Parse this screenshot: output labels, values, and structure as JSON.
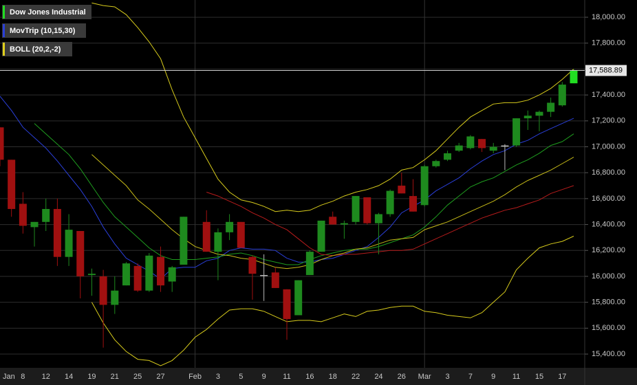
{
  "chart_data": {
    "type": "candlestick",
    "ylim": [
      15294,
      18133
    ],
    "yticks": [
      {
        "value": 15400,
        "label": "15,400.00"
      },
      {
        "value": 15600,
        "label": "15,600.00"
      },
      {
        "value": 15800,
        "label": "15,800.00"
      },
      {
        "value": 16000,
        "label": "16,000.00"
      },
      {
        "value": 16200,
        "label": "16,200.00"
      },
      {
        "value": 16400,
        "label": "16,400.00"
      },
      {
        "value": 16600,
        "label": "16,600.00"
      },
      {
        "value": 16800,
        "label": "16,800.00"
      },
      {
        "value": 17000,
        "label": "17,000.00"
      },
      {
        "value": 17200,
        "label": "17,200.00"
      },
      {
        "value": 17400,
        "label": "17,400.00"
      },
      {
        "value": 17600,
        "label": "17,600.00"
      },
      {
        "value": 17800,
        "label": "17,800.00"
      },
      {
        "value": 18000,
        "label": "18,000.00"
      }
    ],
    "grid": true,
    "categories": [
      "Jan",
      null,
      "8",
      null,
      "12",
      null,
      "14",
      null,
      "19",
      null,
      "21",
      null,
      "25",
      null,
      "27",
      null,
      null,
      "Feb",
      null,
      "3",
      null,
      "5",
      null,
      "9",
      null,
      "11",
      null,
      "16",
      null,
      "18",
      null,
      "22",
      null,
      "24",
      null,
      "26",
      null,
      "Mar",
      null,
      "3",
      null,
      "7",
      null,
      "9",
      null,
      "11",
      null,
      "15",
      null,
      "17",
      null
    ],
    "month_separators": [
      17,
      37
    ],
    "last_price": {
      "value": 17588.89,
      "label": "17,588.89"
    },
    "candles": {
      "name": "Dow Jones Industrial",
      "color": "#22dd22",
      "up_color": "#1e8a1e",
      "down_color": "#a01010",
      "open": [
        17150,
        16900,
        16560,
        16380,
        16420,
        16520,
        16150,
        16350,
        16010,
        16000,
        15780,
        15930,
        16080,
        15890,
        16150,
        15960,
        16090,
        null,
        16420,
        16190,
        16340,
        16420,
        16150,
        16010,
        16030,
        15900,
        15700,
        16010,
        16190,
        16460,
        16400,
        16420,
        16610,
        16410,
        16480,
        16700,
        16620,
        16550,
        16850,
        16900,
        16970,
        16990,
        17060,
        16970,
        17010,
        17010,
        17220,
        17240,
        17270,
        17320,
        17490
      ],
      "high": [
        17150,
        16900,
        16650,
        16420,
        16600,
        16600,
        16480,
        16350,
        16060,
        16050,
        16000,
        16110,
        16100,
        16180,
        16230,
        16080,
        16460,
        null,
        16510,
        16370,
        16480,
        16420,
        16160,
        16170,
        16070,
        15900,
        15970,
        16200,
        16430,
        16500,
        16430,
        16620,
        16610,
        16490,
        16670,
        16800,
        16750,
        16860,
        16900,
        16970,
        17030,
        17090,
        17060,
        17030,
        17020,
        17220,
        17280,
        17280,
        17380,
        17500,
        17600
      ],
      "low": [
        16850,
        16460,
        16330,
        16230,
        16350,
        16080,
        16080,
        15830,
        15850,
        15450,
        15710,
        15930,
        15880,
        15880,
        15880,
        15880,
        16090,
        null,
        16190,
        15970,
        16280,
        16220,
        15820,
        15810,
        15910,
        15510,
        15700,
        16010,
        16190,
        16400,
        16290,
        16400,
        16400,
        16170,
        16460,
        16640,
        16500,
        16540,
        16840,
        16890,
        16960,
        16980,
        16960,
        16950,
        16820,
        17000,
        17130,
        17120,
        17230,
        17310,
        17490
      ],
      "close": [
        16900,
        16520,
        16390,
        16420,
        16520,
        16150,
        16360,
        16000,
        16020,
        15780,
        15890,
        16100,
        15890,
        16160,
        15930,
        16070,
        16460,
        null,
        16190,
        16340,
        16420,
        16220,
        16020,
        16010,
        15910,
        15670,
        15970,
        16190,
        16430,
        16400,
        16410,
        16620,
        16410,
        16480,
        16660,
        16640,
        16500,
        16850,
        16890,
        16950,
        17010,
        17080,
        16990,
        17000,
        17010,
        17220,
        17240,
        17270,
        17340,
        17480,
        17588.89
      ]
    },
    "indicators": [
      {
        "name": "MovTrip (10,15,30)",
        "color": "#2a3fd8",
        "lines": [
          {
            "color": "#2a3fd8",
            "values": [
              17390,
              17280,
              17150,
              17070,
              16990,
              16890,
              16780,
              16670,
              16540,
              16380,
              16250,
              16140,
              16090,
              16040,
              15980,
              16060,
              16070,
              16070,
              16120,
              16140,
              16200,
              16220,
              16210,
              16210,
              16200,
              16140,
              16110,
              16110,
              16130,
              16140,
              16170,
              16200,
              16230,
              16300,
              16380,
              16490,
              16540,
              16590,
              16660,
              16710,
              16760,
              16830,
              16890,
              16940,
              16970,
              17020,
              17050,
              17100,
              17140,
              17180,
              17220
            ]
          },
          {
            "color": "#1f9e1f",
            "values": [
              null,
              null,
              null,
              17180,
              17100,
              17020,
              16940,
              16830,
              16700,
              16570,
              16460,
              16380,
              16300,
              16220,
              16160,
              16130,
              16130,
              16130,
              16140,
              16150,
              16170,
              16180,
              16160,
              16130,
              16110,
              16090,
              16090,
              16130,
              16160,
              16180,
              16200,
              16210,
              16210,
              16230,
              16260,
              16290,
              16320,
              16380,
              16460,
              16550,
              16620,
              16690,
              16730,
              16760,
              16810,
              16860,
              16900,
              16950,
              17010,
              17040,
              17100
            ]
          },
          {
            "color": "#b81c1c",
            "values": [
              null,
              null,
              null,
              null,
              null,
              null,
              null,
              null,
              null,
              null,
              null,
              null,
              null,
              null,
              null,
              null,
              null,
              null,
              16650,
              16620,
              16580,
              16540,
              16490,
              16450,
              16400,
              16360,
              16290,
              16220,
              16170,
              16160,
              16170,
              16170,
              16180,
              16190,
              16200,
              16200,
              16210,
              16250,
              16290,
              16330,
              16370,
              16410,
              16450,
              16480,
              16510,
              16530,
              16560,
              16590,
              16640,
              16670,
              16700
            ]
          }
        ]
      },
      {
        "name": "BOLL (20,2,-2)",
        "color": "#e0d01c",
        "lines": [
          {
            "color": "#d8cc1c",
            "values": [
              null,
              null,
              null,
              null,
              null,
              null,
              null,
              null,
              18110,
              18090,
              18080,
              18020,
              17920,
              17810,
              17680,
              17440,
              17230,
              17070,
              16910,
              16750,
              16650,
              16590,
              16570,
              16540,
              16500,
              16510,
              16500,
              16510,
              16550,
              16580,
              16620,
              16650,
              16670,
              16700,
              16750,
              16820,
              16840,
              16900,
              16970,
              17060,
              17150,
              17230,
              17280,
              17330,
              17340,
              17340,
              17360,
              17400,
              17450,
              17520,
              17600
            ]
          },
          {
            "color": "#c8bc18",
            "values": [
              null,
              null,
              null,
              null,
              null,
              null,
              null,
              null,
              16940,
              16860,
              16780,
              16700,
              16590,
              16520,
              16440,
              16360,
              16290,
              16230,
              16200,
              16170,
              16160,
              16140,
              16130,
              16100,
              16070,
              16060,
              16070,
              16090,
              16130,
              16160,
              16180,
              16210,
              16220,
              16250,
              16280,
              16290,
              16300,
              16360,
              16390,
              16420,
              16460,
              16500,
              16540,
              16580,
              16630,
              16690,
              16740,
              16780,
              16820,
              16870,
              16920
            ]
          },
          {
            "color": "#d8cc1c",
            "values": [
              null,
              null,
              null,
              null,
              null,
              null,
              null,
              null,
              15800,
              15640,
              15510,
              15420,
              15360,
              15350,
              15310,
              15350,
              15430,
              15530,
              15590,
              15670,
              15740,
              15750,
              15750,
              15730,
              15690,
              15650,
              15660,
              15660,
              15650,
              15680,
              15710,
              15690,
              15730,
              15740,
              15760,
              15770,
              15770,
              15730,
              15720,
              15700,
              15690,
              15680,
              15720,
              15800,
              15880,
              16050,
              16140,
              16220,
              16250,
              16270,
              16310
            ]
          }
        ]
      }
    ]
  }
}
